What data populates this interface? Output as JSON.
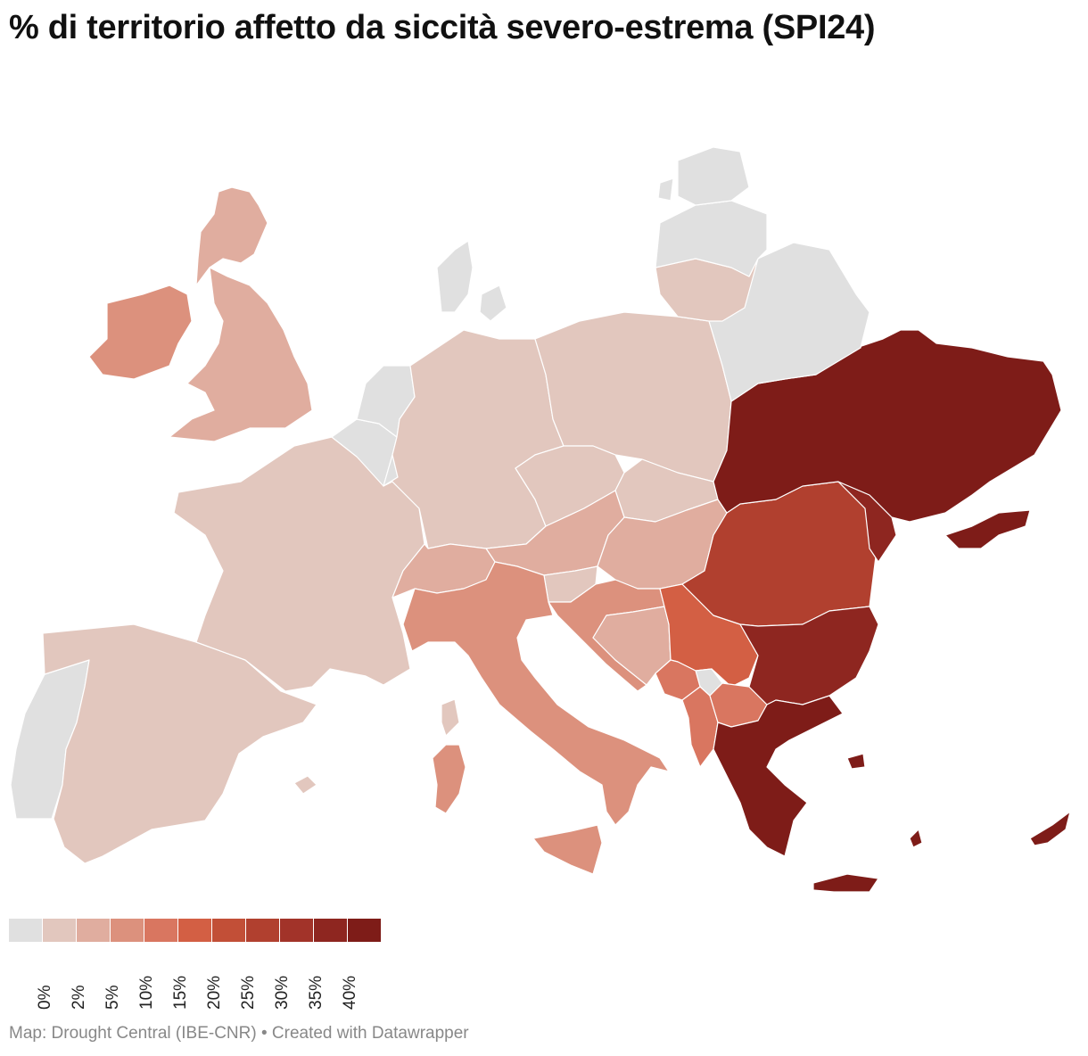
{
  "title": "% di territorio affetto da siccità severo-estrema  (SPI24)",
  "credit": "Map: Drought Central (IBE-CNR) • Created with Datawrapper",
  "legend": {
    "colors": [
      "#e0e0e0",
      "#e2c7be",
      "#e0ad9f",
      "#dc917d",
      "#d97660",
      "#d35f44",
      "#c24f37",
      "#b1402f",
      "#a23329",
      "#8e2620",
      "#7e1c18"
    ],
    "ticks": [
      "0%",
      "2%",
      "5%",
      "10%",
      "15%",
      "20%",
      "25%",
      "30%",
      "35%",
      "40%"
    ]
  },
  "map_data": {
    "metric": "% di territorio affetto da siccità severo-estrema (SPI24)",
    "regions": [
      {
        "region": "Portugal",
        "class": "0%"
      },
      {
        "region": "Spain",
        "class": "0–2%"
      },
      {
        "region": "France",
        "class": "0–2%"
      },
      {
        "region": "Belgium",
        "class": "0%"
      },
      {
        "region": "Netherlands",
        "class": "0%"
      },
      {
        "region": "Luxembourg",
        "class": "0%"
      },
      {
        "region": "Denmark",
        "class": "0%"
      },
      {
        "region": "Germany",
        "class": "0–2%"
      },
      {
        "region": "Poland",
        "class": "0–2%"
      },
      {
        "region": "Czechia",
        "class": "0–2%"
      },
      {
        "region": "Slovakia",
        "class": "0–2%"
      },
      {
        "region": "Slovenia",
        "class": "0–2%"
      },
      {
        "region": "Lithuania",
        "class": "0–2%"
      },
      {
        "region": "Latvia",
        "class": "0%"
      },
      {
        "region": "Estonia",
        "class": "0%"
      },
      {
        "region": "Belarus",
        "class": "0%"
      },
      {
        "region": "United Kingdom",
        "class": "2–5%"
      },
      {
        "region": "Ireland",
        "class": "5–10%"
      },
      {
        "region": "Austria",
        "class": "2–5%"
      },
      {
        "region": "Switzerland",
        "class": "2–5%"
      },
      {
        "region": "Hungary",
        "class": "2–5%"
      },
      {
        "region": "Croatia",
        "class": "5–10%"
      },
      {
        "region": "Bosnia and Herzegovina",
        "class": "2–5%"
      },
      {
        "region": "Italy",
        "class": "5–10%"
      },
      {
        "region": "Montenegro",
        "class": "10–15%"
      },
      {
        "region": "Albania",
        "class": "10–15%"
      },
      {
        "region": "North Macedonia",
        "class": "10–15%"
      },
      {
        "region": "Serbia",
        "class": "15–20%"
      },
      {
        "region": "Kosovo",
        "class": "0%"
      },
      {
        "region": "Romania",
        "class": "25–30%"
      },
      {
        "region": "Bulgaria",
        "class": "35–40%"
      },
      {
        "region": "Moldova",
        "class": "35–40%"
      },
      {
        "region": "Greece",
        "class": "40%+"
      },
      {
        "region": "Ukraine",
        "class": "40%+"
      },
      {
        "region": "Cyprus",
        "class": "40%+"
      }
    ]
  }
}
